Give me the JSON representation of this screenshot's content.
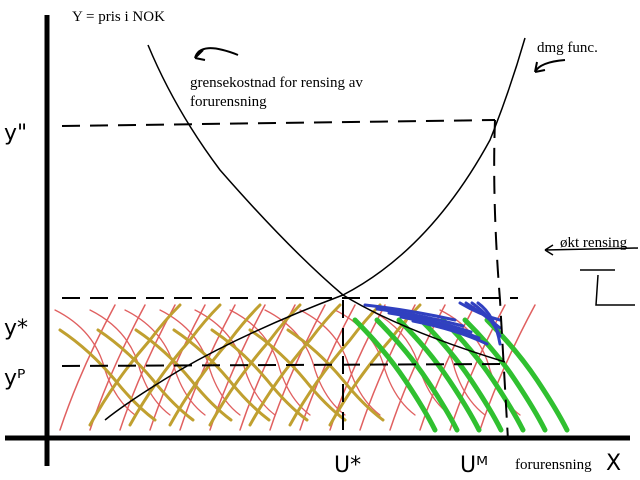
{
  "axes": {
    "y_label": "Y = pris i NOK",
    "x_label": "forurensning",
    "x_symbol": "X"
  },
  "curves": {
    "marginal_cost": {
      "label_line1": "grensekostnad for rensing av",
      "label_line2": "forurensning"
    },
    "damage": {
      "label": "dmg func."
    }
  },
  "annotation": "økt rensing",
  "y_levels": [
    "y\"",
    "y*",
    "yᴾ"
  ],
  "x_levels": [
    "U*",
    "Uᴹ"
  ]
}
